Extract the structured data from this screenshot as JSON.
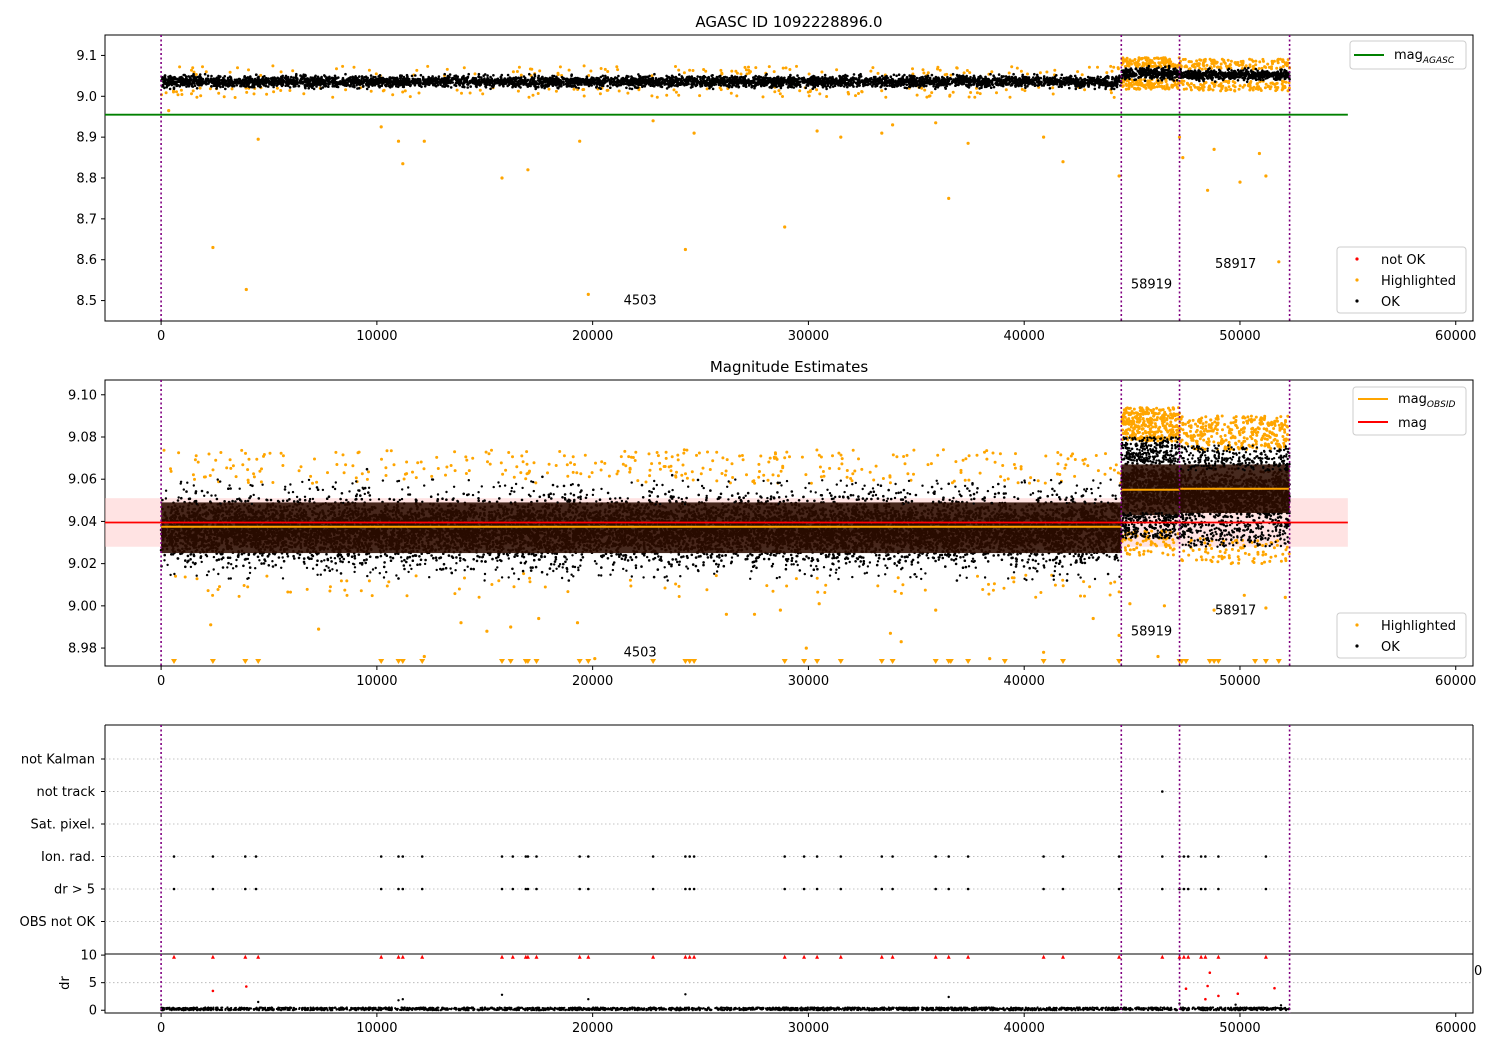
{
  "figure": {
    "colors": {
      "ok": "#000000",
      "highlighted": "#ffa500",
      "not_ok": "#ff0000",
      "mag_agasc": "#008000",
      "mag": "#ff0000",
      "mag_obsid": "#ffa500",
      "interval_line": "#800080",
      "mag_band": "#ffc0c0",
      "obsid_band": "#2d0d00",
      "grid": "#b0b0b0"
    }
  },
  "chart_data": [
    {
      "type": "scatter",
      "title": "AGASC ID 1092228896.0",
      "xlabel": "",
      "ylabel": "",
      "xlim": [
        -2600,
        60800
      ],
      "ylim": [
        8.45,
        9.15
      ],
      "xticks": [
        0,
        10000,
        20000,
        30000,
        40000,
        50000,
        60000
      ],
      "yticks": [
        8.5,
        8.6,
        8.7,
        8.8,
        8.9,
        9.0,
        9.1
      ],
      "ytick_labels": [
        "8.5",
        "8.6",
        "8.7",
        "8.8",
        "8.9",
        "9.0",
        "9.1"
      ],
      "legend_lines": {
        "position": "top-right",
        "entries": [
          "mag",
          "AGASC"
        ]
      },
      "legend_points": {
        "position": "bottom-right",
        "entries": [
          "not OK",
          "Highlighted",
          "OK"
        ]
      },
      "mag_agasc": 8.955,
      "mag_agasc_xrange": [
        -2600,
        55000
      ],
      "interval_boundaries": [
        0,
        44500,
        47200,
        52300
      ],
      "annotations": [
        {
          "text": "4503",
          "x": 22200,
          "y": 8.49
        },
        {
          "text": "58919",
          "x": 45900,
          "y": 8.53
        },
        {
          "text": "58917",
          "x": 49800,
          "y": 8.58
        }
      ],
      "series": [
        {
          "name": "OK",
          "segments": [
            {
              "x": [
                0,
                44500
              ],
              "y": 9.036,
              "spread": 0.012
            },
            {
              "x": [
                44500,
                47200
              ],
              "y": 9.056,
              "spread": 0.013
            },
            {
              "x": [
                47200,
                52300
              ],
              "y": 9.052,
              "spread": 0.011
            }
          ]
        },
        {
          "name": "Highlighted",
          "outliers": [
            {
              "x": 350,
              "y": 8.965
            },
            {
              "x": 2400,
              "y": 8.63
            },
            {
              "x": 3950,
              "y": 8.527
            },
            {
              "x": 4500,
              "y": 8.895
            },
            {
              "x": 10200,
              "y": 8.925
            },
            {
              "x": 11000,
              "y": 8.89
            },
            {
              "x": 11200,
              "y": 8.835
            },
            {
              "x": 12200,
              "y": 8.89
            },
            {
              "x": 15800,
              "y": 8.8
            },
            {
              "x": 17000,
              "y": 8.82
            },
            {
              "x": 19400,
              "y": 8.89
            },
            {
              "x": 19800,
              "y": 8.515
            },
            {
              "x": 22800,
              "y": 8.94
            },
            {
              "x": 24300,
              "y": 8.625
            },
            {
              "x": 24700,
              "y": 8.91
            },
            {
              "x": 28900,
              "y": 8.68
            },
            {
              "x": 30400,
              "y": 8.915
            },
            {
              "x": 31500,
              "y": 8.9
            },
            {
              "x": 33400,
              "y": 8.91
            },
            {
              "x": 33900,
              "y": 8.93
            },
            {
              "x": 35900,
              "y": 8.935
            },
            {
              "x": 36500,
              "y": 8.75
            },
            {
              "x": 37400,
              "y": 8.885
            },
            {
              "x": 40900,
              "y": 8.9
            },
            {
              "x": 41800,
              "y": 8.84
            },
            {
              "x": 44400,
              "y": 8.805
            },
            {
              "x": 47200,
              "y": 8.9
            },
            {
              "x": 47350,
              "y": 8.85
            },
            {
              "x": 48500,
              "y": 8.77
            },
            {
              "x": 48800,
              "y": 8.87
            },
            {
              "x": 50000,
              "y": 8.79
            },
            {
              "x": 50900,
              "y": 8.86
            },
            {
              "x": 51200,
              "y": 8.805
            },
            {
              "x": 51800,
              "y": 8.595
            }
          ]
        }
      ]
    },
    {
      "type": "scatter",
      "title": "Magnitude Estimates",
      "xlabel": "",
      "ylabel": "",
      "xlim": [
        -2600,
        60800
      ],
      "ylim": [
        8.9715,
        9.107
      ],
      "xticks": [
        0,
        10000,
        20000,
        30000,
        40000,
        50000,
        60000
      ],
      "yticks": [
        8.98,
        9.0,
        9.02,
        9.04,
        9.06,
        9.08,
        9.1
      ],
      "ytick_labels": [
        "8.98",
        "9.00",
        "9.02",
        "9.04",
        "9.06",
        "9.08",
        "9.10"
      ],
      "legend_lines": {
        "position": "top-right",
        "entries": [
          "mag",
          "OBSID",
          "mag"
        ]
      },
      "legend_points": {
        "position": "bottom-right",
        "entries": [
          "Highlighted",
          "OK"
        ]
      },
      "mag": 9.0395,
      "mag_band": [
        9.028,
        9.051
      ],
      "mag_xrange": [
        -2600,
        55000
      ],
      "mag_obsid_segments": [
        {
          "x": [
            0,
            44500
          ],
          "y": 9.0375,
          "band": [
            9.025,
            9.049
          ]
        },
        {
          "x": [
            44500,
            47200
          ],
          "y": 9.055,
          "band": [
            9.043,
            9.067
          ]
        },
        {
          "x": [
            47200,
            52300
          ],
          "y": 9.0555,
          "band": [
            9.044,
            9.067
          ]
        }
      ],
      "interval_boundaries": [
        0,
        44500,
        47200,
        52300
      ],
      "annotations": [
        {
          "text": "4503",
          "x": 22200,
          "y": 8.976
        },
        {
          "text": "58919",
          "x": 45900,
          "y": 8.986
        },
        {
          "text": "58917",
          "x": 49800,
          "y": 8.996
        }
      ],
      "series": [
        {
          "name": "OK",
          "segments": [
            {
              "x": [
                0,
                44500
              ],
              "y": 9.036,
              "spread": 0.012
            },
            {
              "x": [
                44500,
                47200
              ],
              "y": 9.056,
              "spread": 0.013
            },
            {
              "x": [
                47200,
                52300
              ],
              "y": 9.052,
              "spread": 0.012
            }
          ]
        },
        {
          "name": "Highlighted",
          "outliers": [
            {
              "x": 2300,
              "y": 8.991
            },
            {
              "x": 7300,
              "y": 8.989
            },
            {
              "x": 12200,
              "y": 8.976
            },
            {
              "x": 13900,
              "y": 8.992
            },
            {
              "x": 15100,
              "y": 8.988
            },
            {
              "x": 16200,
              "y": 8.99
            },
            {
              "x": 17500,
              "y": 8.994
            },
            {
              "x": 19300,
              "y": 8.992
            },
            {
              "x": 20100,
              "y": 8.975
            },
            {
              "x": 26200,
              "y": 8.996
            },
            {
              "x": 27500,
              "y": 8.996
            },
            {
              "x": 28700,
              "y": 8.998
            },
            {
              "x": 29900,
              "y": 8.98
            },
            {
              "x": 30500,
              "y": 9.001
            },
            {
              "x": 33800,
              "y": 8.987
            },
            {
              "x": 34300,
              "y": 8.983
            },
            {
              "x": 35900,
              "y": 8.998
            },
            {
              "x": 38400,
              "y": 8.975
            },
            {
              "x": 40900,
              "y": 8.978
            },
            {
              "x": 43200,
              "y": 8.994
            },
            {
              "x": 44400,
              "y": 8.986
            },
            {
              "x": 44900,
              "y": 9.001
            },
            {
              "x": 46200,
              "y": 8.976
            },
            {
              "x": 46500,
              "y": 9.0
            },
            {
              "x": 48800,
              "y": 8.998
            },
            {
              "x": 50200,
              "y": 9.005
            },
            {
              "x": 51200,
              "y": 8.999
            },
            {
              "x": 52100,
              "y": 9.004
            }
          ]
        },
        {
          "name": "Highlighted below range",
          "x": [
            600,
            2400,
            3900,
            4500,
            10200,
            11000,
            11200,
            12100,
            15800,
            16200,
            16900,
            17000,
            17400,
            19400,
            19800,
            22800,
            24300,
            24500,
            24700,
            28900,
            29800,
            30400,
            31500,
            33400,
            33900,
            35900,
            36500,
            36600,
            37400,
            39100,
            40900,
            41800,
            44400,
            47200,
            47300,
            47500,
            48600,
            48800,
            49000,
            50700,
            51200,
            51800
          ]
        }
      ]
    },
    {
      "type": "scatter",
      "title": "",
      "xlabel": "",
      "ylabel": "",
      "xlim": [
        -2600,
        60800
      ],
      "categories": [
        "not Kalman",
        "not track",
        "Sat. pixel.",
        "Ion. rad.",
        "dr > 5",
        "OBS not OK"
      ],
      "interval_boundaries": [
        0,
        44500,
        47200,
        52300
      ],
      "flags": {
        "not track": [
          46400
        ],
        "Ion. rad.": [
          600,
          2400,
          3900,
          4400,
          10200,
          11000,
          11200,
          12100,
          15800,
          16300,
          16900,
          17000,
          17400,
          19400,
          19800,
          22800,
          24300,
          24500,
          24700,
          28900,
          29800,
          30400,
          31500,
          33400,
          33900,
          35900,
          36500,
          37400,
          40900,
          41800,
          44400,
          46400,
          47200,
          47400,
          47600,
          48200,
          48400,
          49000,
          51200
        ],
        "dr > 5": [
          600,
          2400,
          3900,
          4400,
          10200,
          11000,
          11200,
          12100,
          15800,
          16300,
          16900,
          17000,
          17400,
          19400,
          19800,
          22800,
          24300,
          24500,
          24700,
          28900,
          29800,
          30400,
          31500,
          33400,
          33900,
          35900,
          36500,
          37400,
          40900,
          41800,
          44400,
          46400,
          47200,
          47400,
          47600,
          48200,
          48400,
          49000,
          51200
        ]
      }
    },
    {
      "type": "scatter",
      "title": "",
      "xlabel": "",
      "ylabel": "dr",
      "xlim": [
        -2600,
        60800
      ],
      "ylim": [
        -0.5,
        10.2
      ],
      "xticks": [
        0,
        10000,
        20000,
        30000,
        40000,
        50000,
        60000
      ],
      "yticks": [
        0,
        5,
        10
      ],
      "ytick_labels": [
        "0",
        "5",
        "10"
      ],
      "extra_tick_label": "0",
      "interval_boundaries": [
        0,
        44500,
        47200,
        52300
      ],
      "series": [
        {
          "name": "OK",
          "band": [
            0.0,
            0.5
          ],
          "x_range": [
            0,
            52300
          ],
          "extra": [
            {
              "x": 11000,
              "y": 1.8
            },
            {
              "x": 11200,
              "y": 2.0
            },
            {
              "x": 15800,
              "y": 2.8
            },
            {
              "x": 19800,
              "y": 2.0
            },
            {
              "x": 24300,
              "y": 2.9
            },
            {
              "x": 4500,
              "y": 1.5
            },
            {
              "x": 36500,
              "y": 2.4
            },
            {
              "x": 47200,
              "y": 1.2
            },
            {
              "x": 49800,
              "y": 1.0
            },
            {
              "x": 51900,
              "y": 0.9
            }
          ]
        },
        {
          "name": "not OK",
          "clipped_x": [
            600,
            2400,
            3900,
            4500,
            10200,
            11000,
            11200,
            12100,
            15800,
            16300,
            16900,
            17000,
            17400,
            19400,
            19800,
            22800,
            24300,
            24500,
            24700,
            28900,
            29800,
            30400,
            31500,
            33400,
            33900,
            35900,
            36500,
            37400,
            40900,
            41800,
            44400,
            46400,
            47200,
            47400,
            47600,
            48200,
            48400,
            49000,
            51200
          ],
          "points": [
            {
              "x": 2400,
              "y": 3.5
            },
            {
              "x": 3950,
              "y": 4.3
            },
            {
              "x": 47500,
              "y": 3.9
            },
            {
              "x": 48500,
              "y": 4.4
            },
            {
              "x": 48600,
              "y": 6.8
            },
            {
              "x": 49000,
              "y": 2.6
            },
            {
              "x": 49900,
              "y": 3.0
            },
            {
              "x": 51600,
              "y": 4.0
            },
            {
              "x": 48400,
              "y": 2.0
            }
          ]
        }
      ]
    }
  ]
}
